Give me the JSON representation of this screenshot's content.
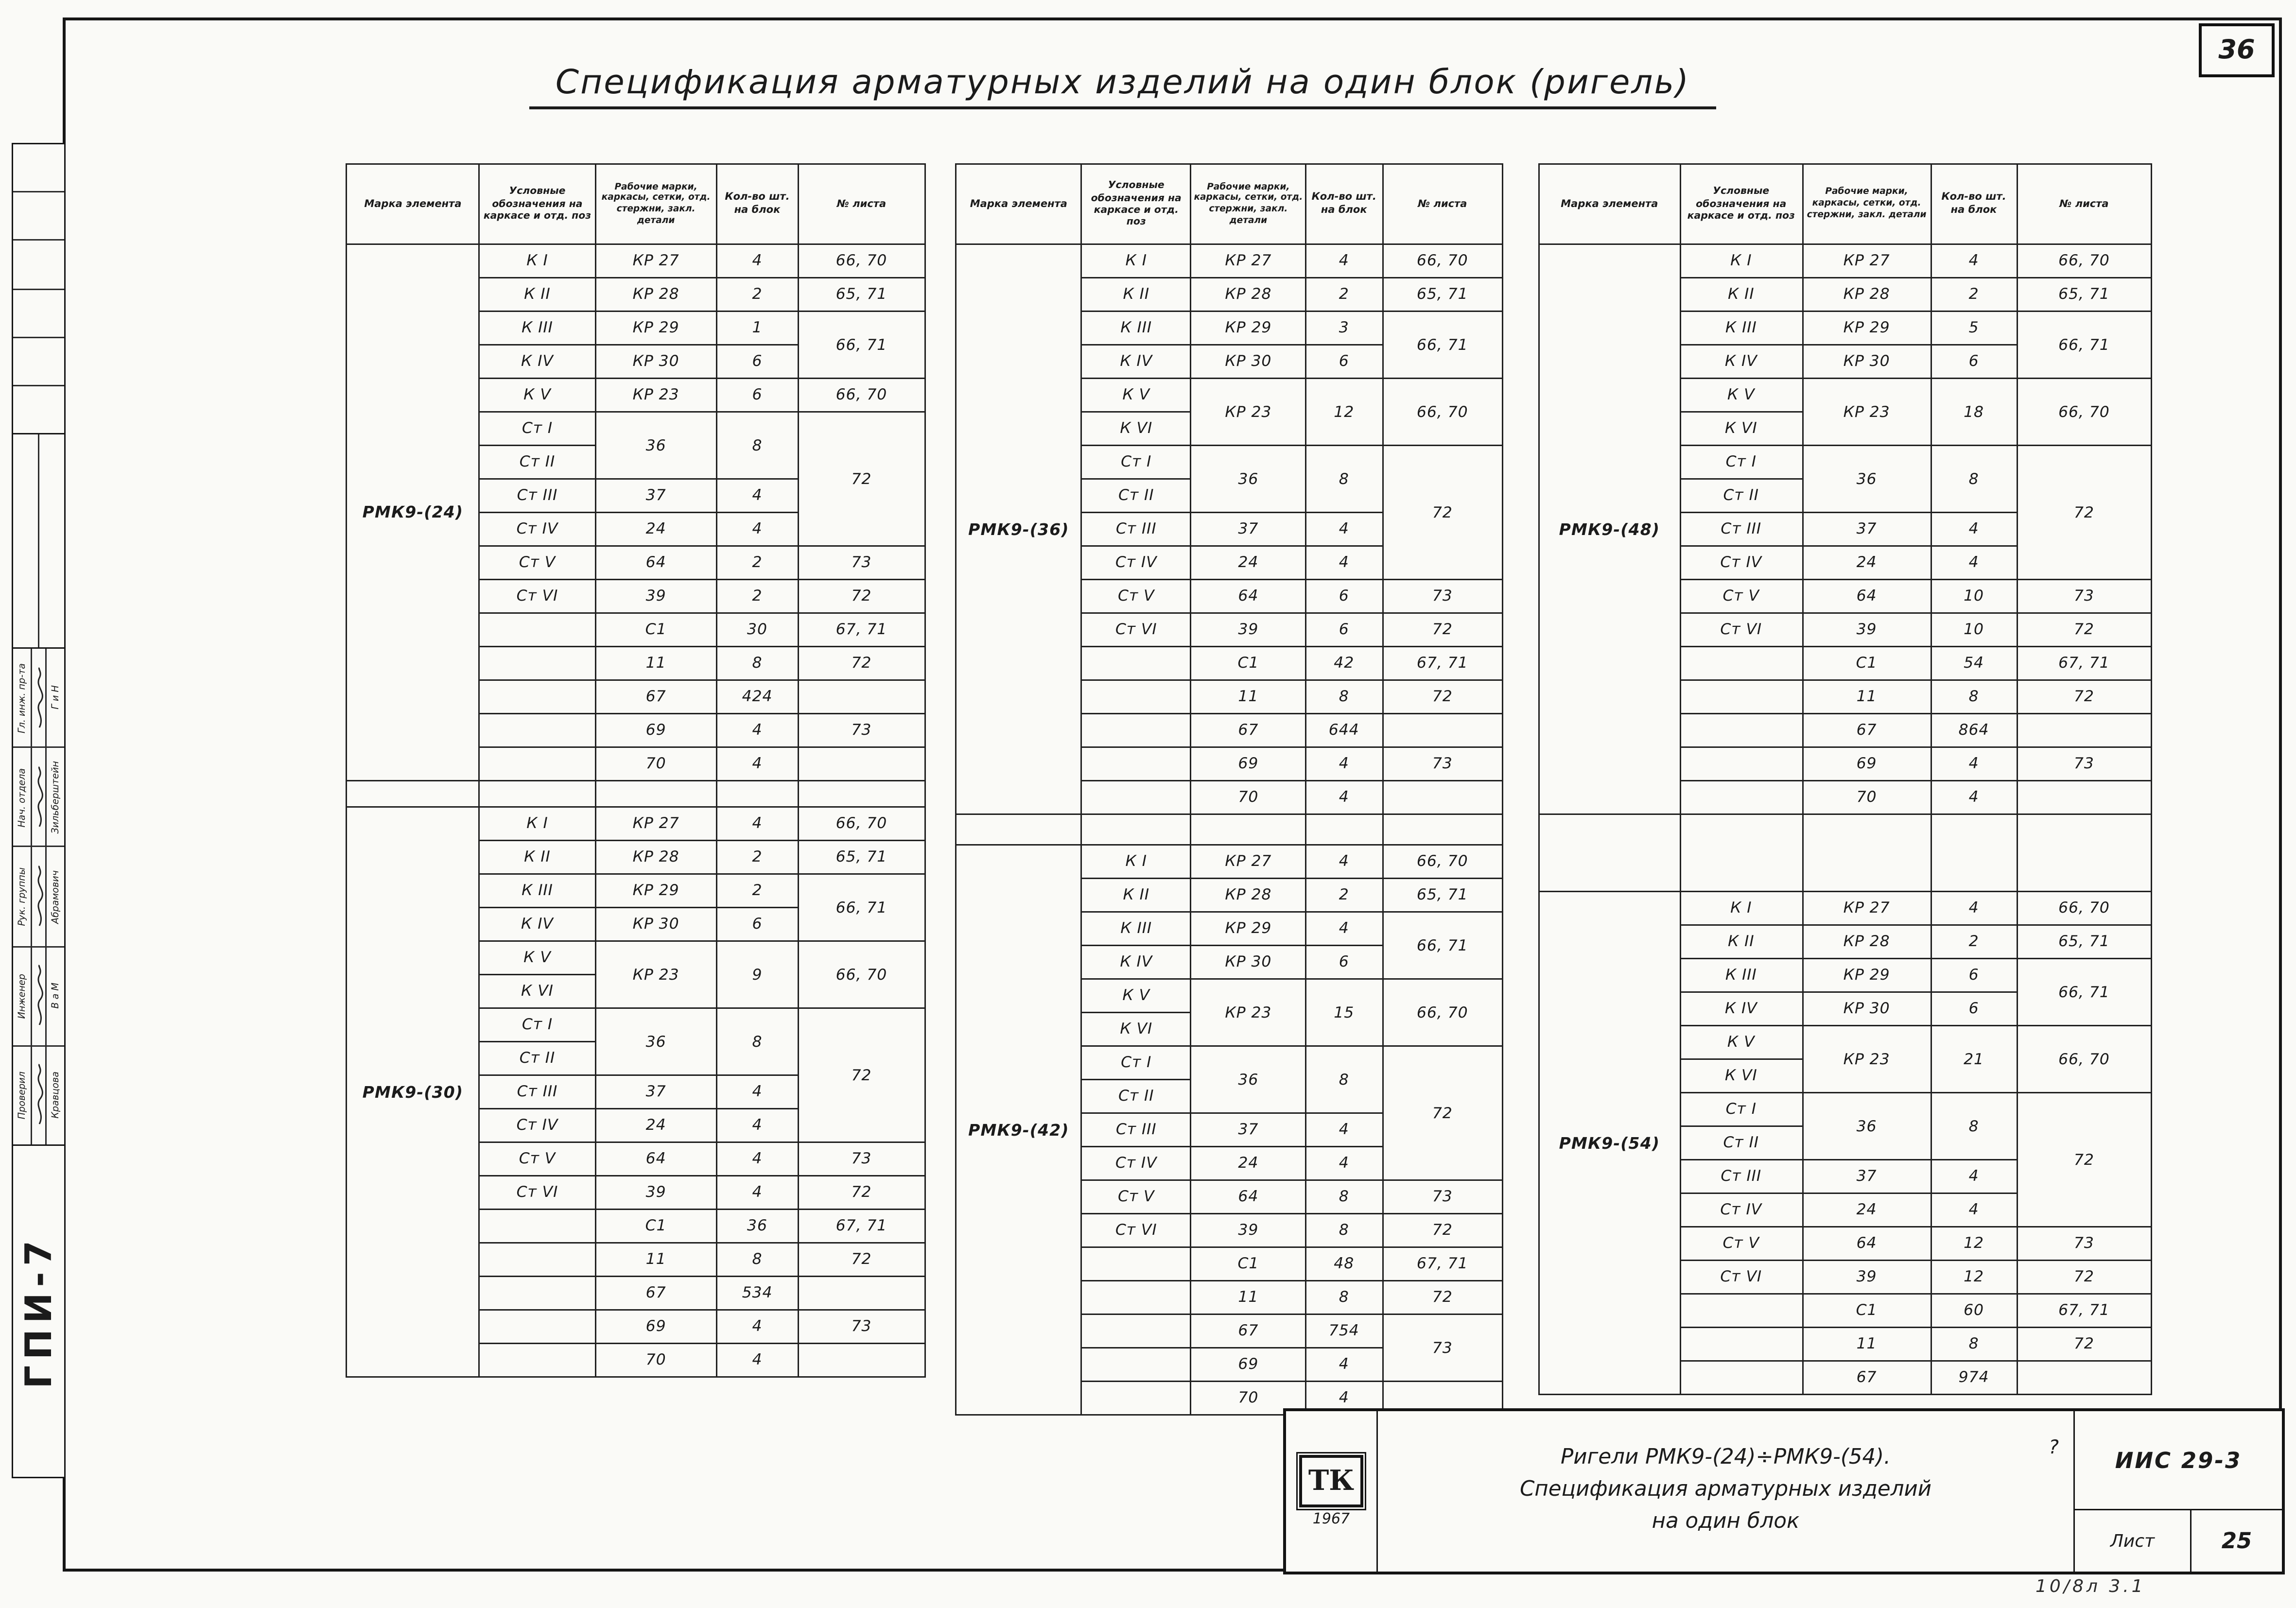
{
  "page": {
    "sheet_number": "36",
    "title": "Спецификация арматурных изделий на один блок  (ригель)",
    "corner_note": "10/8л  3.1"
  },
  "stamp": {
    "org": "ГПИ-7",
    "rows": [
      {
        "role": "Гл. инж. пр-та",
        "name": "Г и Н"
      },
      {
        "role": "Нач. отдела",
        "name": "Зильберштейн"
      },
      {
        "role": "Рук. группы",
        "name": "Абрамович"
      },
      {
        "role": "Инженер",
        "name": "В а М"
      },
      {
        "role": "Проверил",
        "name": "Кравцова"
      }
    ]
  },
  "table_headers": [
    "Марка элемента",
    "Условные обозначения на каркасе и отд. поз",
    "Рабочие марки, каркасы, сетки, отд. стержни, закл. детали",
    "Кол-во шт. на блок",
    "№ листа"
  ],
  "tables": [
    {
      "id": "t1",
      "blocks": [
        {
          "element": "РМК9-(24)",
          "rows": [
            [
              "К I",
              "КР 27",
              "4",
              "66, 70"
            ],
            [
              "К II",
              "КР 28",
              "2",
              "65, 71"
            ],
            [
              "К III",
              "КР 29",
              "1",
              {
                "t": "66, 71",
                "rs": 2
              }
            ],
            [
              "К IV",
              "КР 30",
              "6",
              null
            ],
            [
              "К V",
              "КР 23",
              "6",
              "66, 70"
            ],
            [
              "Ст I",
              {
                "t": "36",
                "rs": 2
              },
              {
                "t": "8",
                "rs": 2
              },
              {
                "t": "72",
                "rs": 4
              }
            ],
            [
              "Ст II",
              null,
              null,
              null
            ],
            [
              "Ст III",
              "37",
              "4",
              null
            ],
            [
              "Ст IV",
              "24",
              "4",
              null
            ],
            [
              "Ст V",
              "64",
              "2",
              "73"
            ],
            [
              "Ст VI",
              "39",
              "2",
              "72"
            ],
            [
              "",
              "С1",
              "30",
              "67, 71"
            ],
            [
              "",
              "11",
              "8",
              "72"
            ],
            [
              "",
              "67",
              "424",
              ""
            ],
            [
              "",
              "69",
              "4",
              "73"
            ],
            [
              "",
              "70",
              "4",
              ""
            ]
          ]
        },
        {
          "element": "РМК9-(30)",
          "rows": [
            [
              "К I",
              "КР 27",
              "4",
              "66, 70"
            ],
            [
              "К II",
              "КР 28",
              "2",
              "65, 71"
            ],
            [
              "К III",
              "КР 29",
              "2",
              {
                "t": "66, 71",
                "rs": 2
              }
            ],
            [
              "К IV",
              "КР 30",
              "6",
              null
            ],
            [
              "К V",
              {
                "t": "КР 23",
                "rs": 2
              },
              {
                "t": "9",
                "rs": 2
              },
              {
                "t": "66, 70",
                "rs": 2
              }
            ],
            [
              "К VI",
              null,
              null,
              null
            ],
            [
              "Ст I",
              {
                "t": "36",
                "rs": 2
              },
              {
                "t": "8",
                "rs": 2
              },
              {
                "t": "72",
                "rs": 4
              }
            ],
            [
              "Ст II",
              null,
              null,
              null
            ],
            [
              "Ст III",
              "37",
              "4",
              null
            ],
            [
              "Ст IV",
              "24",
              "4",
              null
            ],
            [
              "Ст V",
              "64",
              "4",
              "73"
            ],
            [
              "Ст VI",
              "39",
              "4",
              "72"
            ],
            [
              "",
              "С1",
              "36",
              "67, 71"
            ],
            [
              "",
              "11",
              "8",
              "72"
            ],
            [
              "",
              "67",
              "534",
              ""
            ],
            [
              "",
              "69",
              "4",
              "73"
            ],
            [
              "",
              "70",
              "4",
              ""
            ]
          ]
        }
      ]
    },
    {
      "id": "t2",
      "blocks": [
        {
          "element": "РМК9-(36)",
          "rows": [
            [
              "К I",
              "КР 27",
              "4",
              "66, 70"
            ],
            [
              "К II",
              "КР 28",
              "2",
              "65, 71"
            ],
            [
              "К III",
              "КР 29",
              "3",
              {
                "t": "66, 71",
                "rs": 2
              }
            ],
            [
              "К IV",
              "КР 30",
              "6",
              null
            ],
            [
              "К V",
              {
                "t": "КР 23",
                "rs": 2
              },
              {
                "t": "12",
                "rs": 2
              },
              {
                "t": "66, 70",
                "rs": 2
              }
            ],
            [
              "К VI",
              null,
              null,
              null
            ],
            [
              "Ст I",
              {
                "t": "36",
                "rs": 2
              },
              {
                "t": "8",
                "rs": 2
              },
              {
                "t": "72",
                "rs": 4
              }
            ],
            [
              "Ст II",
              null,
              null,
              null
            ],
            [
              "Ст III",
              "37",
              "4",
              null
            ],
            [
              "Ст IV",
              "24",
              "4",
              null
            ],
            [
              "Ст V",
              "64",
              "6",
              "73"
            ],
            [
              "Ст VI",
              "39",
              "6",
              "72"
            ],
            [
              "",
              "С1",
              "42",
              "67, 71"
            ],
            [
              "",
              "11",
              "8",
              "72"
            ],
            [
              "",
              "67",
              "644",
              ""
            ],
            [
              "",
              "69",
              "4",
              "73"
            ],
            [
              "",
              "70",
              "4",
              ""
            ]
          ]
        },
        {
          "element": "РМК9-(42)",
          "rows": [
            [
              "К I",
              "КР 27",
              "4",
              "66, 70"
            ],
            [
              "К II",
              "КР 28",
              "2",
              "65, 71"
            ],
            [
              "К III",
              "КР 29",
              "4",
              {
                "t": "66, 71",
                "rs": 2
              }
            ],
            [
              "К IV",
              "КР 30",
              "6",
              null
            ],
            [
              "К V",
              {
                "t": "КР 23",
                "rs": 2
              },
              {
                "t": "15",
                "rs": 2
              },
              {
                "t": "66, 70",
                "rs": 2
              }
            ],
            [
              "К VI",
              null,
              null,
              null
            ],
            [
              "Ст I",
              {
                "t": "36",
                "rs": 2
              },
              {
                "t": "8",
                "rs": 2
              },
              {
                "t": "72",
                "rs": 4
              }
            ],
            [
              "Ст II",
              null,
              null,
              null
            ],
            [
              "Ст III",
              "37",
              "4",
              null
            ],
            [
              "Ст IV",
              "24",
              "4",
              null
            ],
            [
              "Ст V",
              "64",
              "8",
              "73"
            ],
            [
              "Ст VI",
              "39",
              "8",
              "72"
            ],
            [
              "",
              "С1",
              "48",
              "67, 71"
            ],
            [
              "",
              "11",
              "8",
              "72"
            ],
            [
              "",
              "67",
              "754",
              {
                "t": "73",
                "rs": 2
              }
            ],
            [
              "",
              "69",
              "4",
              null
            ],
            [
              "",
              "70",
              "4",
              ""
            ]
          ]
        }
      ]
    },
    {
      "id": "t3",
      "blocks": [
        {
          "element": "РМК9-(48)",
          "rows": [
            [
              "К I",
              "КР 27",
              "4",
              "66, 70"
            ],
            [
              "К II",
              "КР 28",
              "2",
              "65, 71"
            ],
            [
              "К III",
              "КР 29",
              "5",
              {
                "t": "66, 71",
                "rs": 2
              }
            ],
            [
              "К IV",
              "КР 30",
              "6",
              null
            ],
            [
              "К V",
              {
                "t": "КР 23",
                "rs": 2
              },
              {
                "t": "18",
                "rs": 2
              },
              {
                "t": "66, 70",
                "rs": 2
              }
            ],
            [
              "К VI",
              null,
              null,
              null
            ],
            [
              "Ст I",
              {
                "t": "36",
                "rs": 2
              },
              {
                "t": "8",
                "rs": 2
              },
              {
                "t": "72",
                "rs": 4
              }
            ],
            [
              "Ст II",
              null,
              null,
              null
            ],
            [
              "Ст III",
              "37",
              "4",
              null
            ],
            [
              "Ст IV",
              "24",
              "4",
              null
            ],
            [
              "Ст V",
              "64",
              "10",
              "73"
            ],
            [
              "Ст VI",
              "39",
              "10",
              "72"
            ],
            [
              "",
              "С1",
              "54",
              "67, 71"
            ],
            [
              "",
              "11",
              "8",
              "72"
            ],
            [
              "",
              "67",
              "864",
              ""
            ],
            [
              "",
              "69",
              "4",
              "73"
            ],
            [
              "",
              "70",
              "4",
              ""
            ]
          ]
        },
        {
          "element": "РМК9-(54)",
          "rows": [
            [
              "К I",
              "КР 27",
              "4",
              "66, 70"
            ],
            [
              "К II",
              "КР 28",
              "2",
              "65, 71"
            ],
            [
              "К III",
              "КР 29",
              "6",
              {
                "t": "66, 71",
                "rs": 2
              }
            ],
            [
              "К IV",
              "КР 30",
              "6",
              null
            ],
            [
              "К V",
              {
                "t": "КР 23",
                "rs": 2
              },
              {
                "t": "21",
                "rs": 2
              },
              {
                "t": "66, 70",
                "rs": 2
              }
            ],
            [
              "К VI",
              null,
              null,
              null
            ],
            [
              "Ст I",
              {
                "t": "36",
                "rs": 2
              },
              {
                "t": "8",
                "rs": 2
              },
              {
                "t": "72",
                "rs": 4
              }
            ],
            [
              "Ст II",
              null,
              null,
              null
            ],
            [
              "Ст III",
              "37",
              "4",
              null
            ],
            [
              "Ст IV",
              "24",
              "4",
              null
            ],
            [
              "Ст V",
              "64",
              "12",
              "73"
            ],
            [
              "Ст VI",
              "39",
              "12",
              "72"
            ],
            [
              "",
              "С1",
              "60",
              "67, 71"
            ],
            [
              "",
              "11",
              "8",
              "72"
            ],
            [
              "",
              "67",
              "974",
              ""
            ]
          ]
        }
      ]
    }
  ],
  "titleblock": {
    "logo": "ТК",
    "year": "1967",
    "title_lines": [
      "Ригели РМК9-(24)÷РМК9-(54).",
      "Спецификация арматурных изделий",
      "на один блок"
    ],
    "note_mark": "?",
    "doc_number": "ИИС 29-3",
    "sheet_label": "Лист",
    "sheet_value": "25"
  }
}
